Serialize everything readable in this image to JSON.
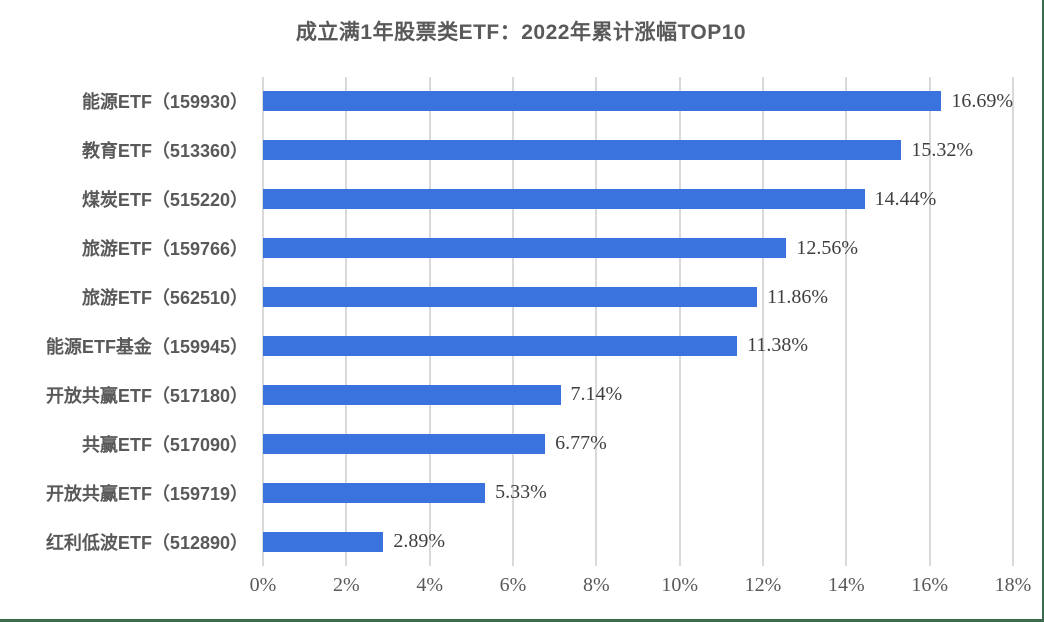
{
  "title": "成立满1年股票类ETF：2022年累计涨幅TOP10",
  "colors": {
    "bar": "#3a73de",
    "gridline": "#d9d9d9",
    "title_text": "#595959",
    "category_text": "#595959",
    "value_text": "#3f3f3f",
    "axis_text": "#595959",
    "frame_border": "#3c6a4d"
  },
  "chart_data": {
    "type": "bar",
    "orientation": "horizontal",
    "title": "成立满1年股票类ETF：2022年累计涨幅TOP10",
    "xlabel": "",
    "ylabel": "",
    "categories": [
      "能源ETF（159930）",
      "教育ETF（513360）",
      "煤炭ETF（515220）",
      "旅游ETF（159766）",
      "旅游ETF（562510）",
      "能源ETF基金（159945）",
      "开放共赢ETF（517180）",
      "共赢ETF（517090）",
      "开放共赢ETF（159719）",
      "红利低波ETF（512890）"
    ],
    "values": [
      16.69,
      15.32,
      14.44,
      12.56,
      11.86,
      11.38,
      7.14,
      6.77,
      5.33,
      2.89
    ],
    "value_labels": [
      "16.69%",
      "15.32%",
      "14.44%",
      "12.56%",
      "11.86%",
      "11.38%",
      "7.14%",
      "6.77%",
      "5.33%",
      "2.89%"
    ],
    "x_ticks": [
      "0%",
      "2%",
      "4%",
      "6%",
      "8%",
      "10%",
      "12%",
      "14%",
      "16%",
      "18%"
    ],
    "x_tick_values": [
      0,
      2,
      4,
      6,
      8,
      10,
      12,
      14,
      16,
      18
    ],
    "xlim": [
      0,
      18
    ],
    "grid": true,
    "legend": false
  }
}
